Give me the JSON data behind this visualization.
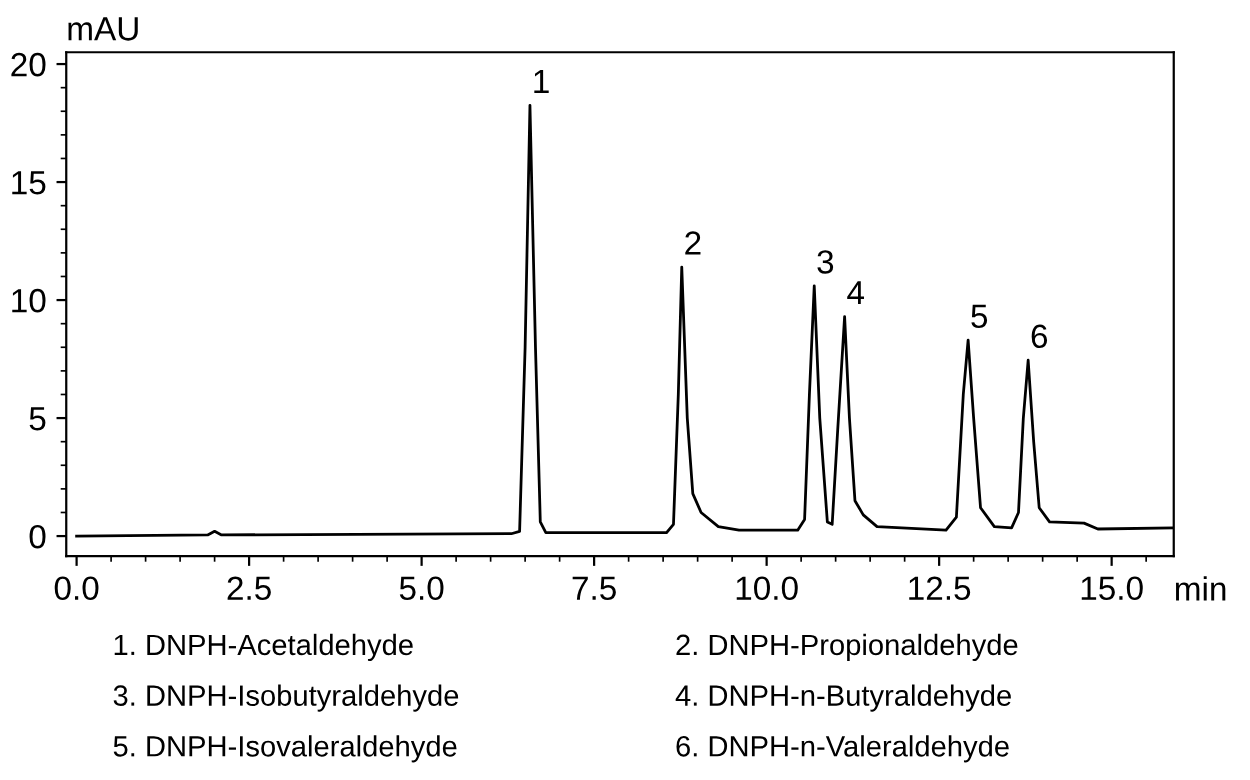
{
  "chart_data": {
    "type": "line",
    "xlabel": "min",
    "ylabel": "mAU",
    "x": [
      0,
      1.9,
      2.0,
      2.1,
      6.3,
      6.42,
      6.5,
      6.57,
      6.65,
      6.72,
      6.8,
      8.55,
      8.65,
      8.72,
      8.77,
      8.85,
      8.93,
      9.05,
      9.3,
      9.6,
      10.45,
      10.55,
      10.62,
      10.69,
      10.77,
      10.88,
      10.95,
      11.03,
      11.13,
      11.2,
      11.28,
      11.4,
      11.6,
      12.6,
      12.75,
      12.85,
      12.92,
      13.0,
      13.1,
      13.3,
      13.55,
      13.65,
      13.72,
      13.79,
      13.87,
      13.95,
      14.1,
      14.6,
      14.8,
      15.9
    ],
    "series": [
      {
        "color": "#000000",
        "values": [
          0.0,
          0.05,
          0.2,
          0.05,
          0.1,
          0.2,
          8,
          18.25,
          8,
          0.6,
          0.15,
          0.15,
          0.5,
          6,
          11.4,
          5,
          1.8,
          1.0,
          0.4,
          0.25,
          0.25,
          0.7,
          6,
          10.6,
          5,
          0.6,
          0.5,
          4.5,
          9.3,
          5,
          1.5,
          0.9,
          0.4,
          0.25,
          0.8,
          6,
          8.3,
          5,
          1.2,
          0.4,
          0.35,
          1,
          5,
          7.45,
          4,
          1.2,
          0.6,
          0.55,
          0.3,
          0.35
        ]
      }
    ],
    "xlim": [
      -0.15,
      15.9
    ],
    "ylim": [
      -0.85,
      20.5
    ],
    "xticks": [
      {
        "value": 0,
        "label": "0.0"
      },
      {
        "value": 2.5,
        "label": "2.5"
      },
      {
        "value": 5,
        "label": "5.0"
      },
      {
        "value": 7.5,
        "label": "7.5"
      },
      {
        "value": 10,
        "label": "10.0"
      },
      {
        "value": 12.5,
        "label": "12.5"
      },
      {
        "value": 15,
        "label": "15.0"
      }
    ],
    "yticks": [
      0,
      5,
      10,
      15,
      20
    ],
    "grid": false,
    "legend": false,
    "marker": "none",
    "line_style": "solid",
    "annotations": [
      {
        "text": "1",
        "x": 6.57,
        "y": 18.25
      },
      {
        "text": "2",
        "x": 8.77,
        "y": 11.4
      },
      {
        "text": "3",
        "x": 10.69,
        "y": 10.6
      },
      {
        "text": "4",
        "x": 11.13,
        "y": 9.3
      },
      {
        "text": "5",
        "x": 12.92,
        "y": 8.3
      },
      {
        "text": "6",
        "x": 13.79,
        "y": 7.45
      },
      "1. DNPH-Acetaldehyde",
      "2. DNPH-Propionaldehyde",
      "3. DNPH-Isobutyraldehyde",
      "4. DNPH-n-Butyraldehyde",
      "5. DNPH-Isovaleraldehyde",
      "6. DNPH-n-Valeraldehyde"
    ]
  }
}
